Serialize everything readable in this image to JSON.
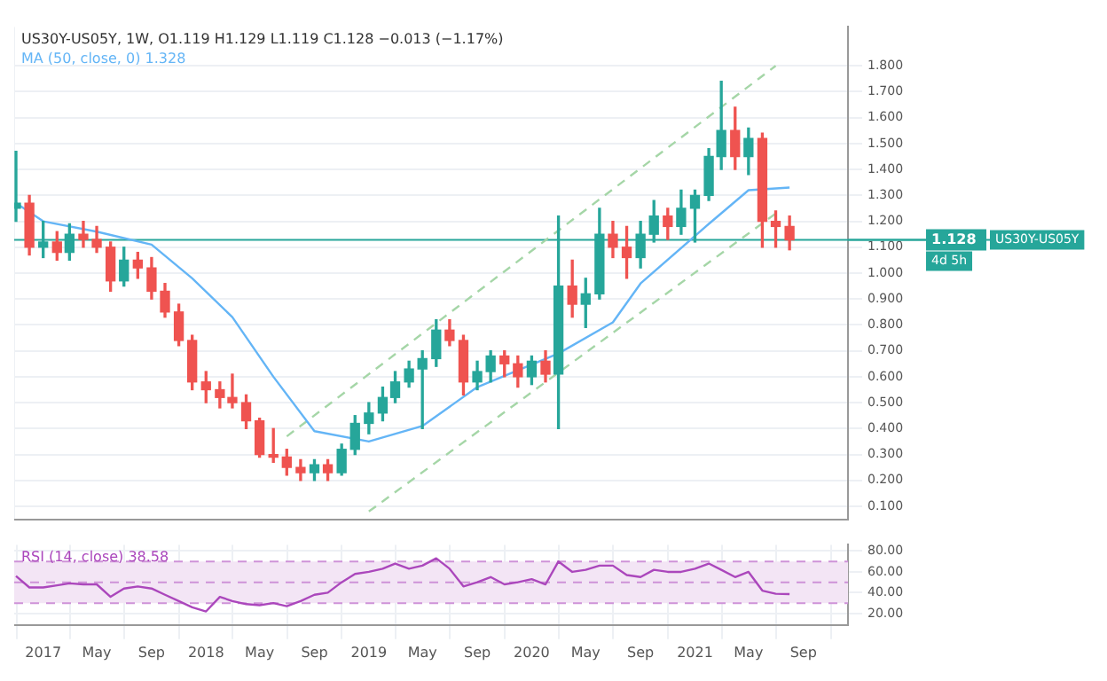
{
  "chart_data": [
    {
      "type": "candlestick",
      "title": "US30Y-US05Y, 1W, O1.119 H1.129 L1.119 C1.128 −0.013 (−1.17%)",
      "x": [
        "2016-11",
        "2016-12",
        "2017-01",
        "2017-02",
        "2017-03",
        "2017-04",
        "2017-05",
        "2017-06",
        "2017-07",
        "2017-08",
        "2017-09",
        "2017-10",
        "2017-11",
        "2017-12",
        "2018-01",
        "2018-02",
        "2018-03",
        "2018-04",
        "2018-05",
        "2018-06",
        "2018-07",
        "2018-08",
        "2018-09",
        "2018-10",
        "2018-11",
        "2018-12",
        "2019-01",
        "2019-02",
        "2019-03",
        "2019-04",
        "2019-05",
        "2019-06",
        "2019-07",
        "2019-08",
        "2019-09",
        "2019-10",
        "2019-11",
        "2019-12",
        "2020-01",
        "2020-02",
        "2020-03",
        "2020-04",
        "2020-05",
        "2020-06",
        "2020-07",
        "2020-08",
        "2020-09",
        "2020-10",
        "2020-11",
        "2020-12",
        "2021-01",
        "2021-02",
        "2021-03",
        "2021-04",
        "2021-05",
        "2021-06",
        "2021-07",
        "2021-08"
      ],
      "ohlc": [
        [
          1.25,
          1.47,
          1.2,
          1.27
        ],
        [
          1.27,
          1.3,
          1.07,
          1.1
        ],
        [
          1.1,
          1.2,
          1.06,
          1.12
        ],
        [
          1.12,
          1.16,
          1.05,
          1.08
        ],
        [
          1.08,
          1.19,
          1.05,
          1.15
        ],
        [
          1.15,
          1.2,
          1.1,
          1.13
        ],
        [
          1.13,
          1.18,
          1.08,
          1.1
        ],
        [
          1.1,
          1.12,
          0.93,
          0.97
        ],
        [
          0.97,
          1.1,
          0.95,
          1.05
        ],
        [
          1.05,
          1.08,
          0.98,
          1.02
        ],
        [
          1.02,
          1.06,
          0.9,
          0.93
        ],
        [
          0.93,
          0.96,
          0.83,
          0.85
        ],
        [
          0.85,
          0.88,
          0.72,
          0.74
        ],
        [
          0.74,
          0.76,
          0.55,
          0.58
        ],
        [
          0.58,
          0.62,
          0.5,
          0.55
        ],
        [
          0.55,
          0.58,
          0.48,
          0.52
        ],
        [
          0.52,
          0.61,
          0.48,
          0.5
        ],
        [
          0.5,
          0.53,
          0.4,
          0.43
        ],
        [
          0.43,
          0.44,
          0.29,
          0.3
        ],
        [
          0.3,
          0.4,
          0.27,
          0.29
        ],
        [
          0.29,
          0.32,
          0.22,
          0.25
        ],
        [
          0.25,
          0.28,
          0.2,
          0.23
        ],
        [
          0.23,
          0.28,
          0.2,
          0.26
        ],
        [
          0.26,
          0.28,
          0.2,
          0.23
        ],
        [
          0.23,
          0.34,
          0.22,
          0.32
        ],
        [
          0.32,
          0.45,
          0.3,
          0.42
        ],
        [
          0.42,
          0.5,
          0.38,
          0.46
        ],
        [
          0.46,
          0.56,
          0.43,
          0.52
        ],
        [
          0.52,
          0.62,
          0.5,
          0.58
        ],
        [
          0.58,
          0.66,
          0.56,
          0.63
        ],
        [
          0.63,
          0.7,
          0.4,
          0.67
        ],
        [
          0.67,
          0.82,
          0.64,
          0.78
        ],
        [
          0.78,
          0.82,
          0.72,
          0.74
        ],
        [
          0.74,
          0.76,
          0.53,
          0.58
        ],
        [
          0.58,
          0.66,
          0.55,
          0.62
        ],
        [
          0.62,
          0.7,
          0.58,
          0.68
        ],
        [
          0.68,
          0.7,
          0.6,
          0.65
        ],
        [
          0.65,
          0.68,
          0.56,
          0.6
        ],
        [
          0.6,
          0.68,
          0.57,
          0.66
        ],
        [
          0.66,
          0.7,
          0.58,
          0.61
        ],
        [
          0.61,
          1.22,
          0.4,
          0.95
        ],
        [
          0.95,
          1.05,
          0.83,
          0.88
        ],
        [
          0.88,
          0.98,
          0.79,
          0.92
        ],
        [
          0.92,
          1.25,
          0.9,
          1.15
        ],
        [
          1.15,
          1.2,
          1.06,
          1.1
        ],
        [
          1.1,
          1.18,
          0.98,
          1.06
        ],
        [
          1.06,
          1.2,
          1.02,
          1.15
        ],
        [
          1.15,
          1.28,
          1.12,
          1.22
        ],
        [
          1.22,
          1.25,
          1.13,
          1.18
        ],
        [
          1.18,
          1.32,
          1.15,
          1.25
        ],
        [
          1.25,
          1.32,
          1.12,
          1.3
        ],
        [
          1.3,
          1.48,
          1.28,
          1.45
        ],
        [
          1.45,
          1.74,
          1.4,
          1.55
        ],
        [
          1.55,
          1.64,
          1.4,
          1.45
        ],
        [
          1.45,
          1.56,
          1.38,
          1.52
        ],
        [
          1.52,
          1.54,
          1.1,
          1.2
        ],
        [
          1.2,
          1.24,
          1.1,
          1.18
        ],
        [
          1.18,
          1.22,
          1.09,
          1.128
        ]
      ],
      "colors": [
        "#26a69a",
        "#ef5350",
        "#26a69a",
        "#ef5350",
        "#26a69a",
        "#ef5350",
        "#ef5350",
        "#ef5350",
        "#26a69a",
        "#ef5350",
        "#ef5350",
        "#ef5350",
        "#ef5350",
        "#ef5350",
        "#ef5350",
        "#ef5350",
        "#ef5350",
        "#ef5350",
        "#ef5350",
        "#ef5350",
        "#ef5350",
        "#ef5350",
        "#26a69a",
        "#ef5350",
        "#26a69a",
        "#26a69a",
        "#26a69a",
        "#26a69a",
        "#26a69a",
        "#26a69a",
        "#26a69a",
        "#26a69a",
        "#ef5350",
        "#ef5350",
        "#26a69a",
        "#26a69a",
        "#ef5350",
        "#ef5350",
        "#26a69a",
        "#ef5350",
        "#26a69a",
        "#ef5350",
        "#26a69a",
        "#26a69a",
        "#ef5350",
        "#ef5350",
        "#26a69a",
        "#26a69a",
        "#ef5350",
        "#26a69a",
        "#26a69a",
        "#26a69a",
        "#26a69a",
        "#ef5350",
        "#26a69a",
        "#ef5350",
        "#ef5350",
        "#ef5350"
      ],
      "series": [
        {
          "type": "line",
          "name": "MA (50, close, 0) 1.328",
          "color": "#64b5f6",
          "x": [
            "2016-11",
            "2017-01",
            "2017-05",
            "2017-09",
            "2017-12",
            "2018-03",
            "2018-06",
            "2018-09",
            "2019-01",
            "2019-05",
            "2019-09",
            "2020-03",
            "2020-07",
            "2020-09",
            "2021-02",
            "2021-05",
            "2021-08"
          ],
          "values": [
            1.27,
            1.2,
            1.16,
            1.11,
            0.98,
            0.83,
            0.6,
            0.39,
            0.35,
            0.41,
            0.56,
            0.69,
            0.81,
            0.96,
            1.19,
            1.32,
            1.33
          ]
        },
        {
          "type": "line",
          "color": "#a5d6a7",
          "line_style": "dashed",
          "x": [
            "2018-07",
            "2021-07"
          ],
          "values": [
            0.37,
            1.8
          ]
        },
        {
          "type": "line",
          "color": "#a5d6a7",
          "line_style": "dashed",
          "x": [
            "2019-01",
            "2021-07"
          ],
          "values": [
            0.08,
            1.23
          ]
        }
      ],
      "xlim": [
        "2016-10-28",
        "2021-12-10"
      ],
      "xticks": [
        {
          "value": "2017-01-01",
          "label": null
        },
        {
          "value": "2017-05-01",
          "label": null
        },
        {
          "value": "2017-09-01",
          "label": null
        },
        {
          "value": "2018-01-01",
          "label": null
        },
        {
          "value": "2018-05-01",
          "label": null
        },
        {
          "value": "2018-09-01",
          "label": null
        },
        {
          "value": "2019-01-01",
          "label": null
        },
        {
          "value": "2019-05-01",
          "label": null
        },
        {
          "value": "2019-09-01",
          "label": null
        },
        {
          "value": "2020-01-01",
          "label": null
        },
        {
          "value": "2020-05-01",
          "label": null
        },
        {
          "value": "2020-09-01",
          "label": null
        },
        {
          "value": "2021-01-01",
          "label": null
        },
        {
          "value": "2021-05-01",
          "label": null
        },
        {
          "value": "2021-09-01",
          "label": null
        }
      ],
      "ylim": [
        0.05,
        1.95
      ],
      "yticks": [
        {
          "value": 0.1,
          "label": "0.100"
        },
        {
          "value": 0.2,
          "label": "0.200"
        },
        {
          "value": 0.3,
          "label": "0.300"
        },
        {
          "value": 0.4,
          "label": "0.400"
        },
        {
          "value": 0.5,
          "label": "0.500"
        },
        {
          "value": 0.6,
          "label": "0.600"
        },
        {
          "value": 0.7,
          "label": "0.700"
        },
        {
          "value": 0.8,
          "label": "0.800"
        },
        {
          "value": 0.9,
          "label": "0.900"
        },
        {
          "value": 1.0,
          "label": "1.000"
        },
        {
          "value": 1.1,
          "label": "1.100"
        },
        {
          "value": 1.2,
          "label": "1.200"
        },
        {
          "value": 1.3,
          "label": "1.300"
        },
        {
          "value": 1.4,
          "label": "1.400"
        },
        {
          "value": 1.5,
          "label": "1.500"
        },
        {
          "value": 1.6,
          "label": "1.600"
        },
        {
          "value": 1.7,
          "label": "1.700"
        },
        {
          "value": 1.8,
          "label": "1.800"
        }
      ],
      "ref_lines": [
        {
          "axis": "y",
          "value": 1.128,
          "label": "1.128",
          "color": "#26a69a"
        }
      ],
      "annotations": [
        {
          "text": "US30Y-US05Y",
          "x": "2021-12-10",
          "y": 1.128
        },
        "4d 5h"
      ],
      "grid": true,
      "tick_labels": "y"
    },
    {
      "type": "line",
      "x": [
        "2016-11",
        "2016-12",
        "2017-01",
        "2017-02",
        "2017-03",
        "2017-04",
        "2017-05",
        "2017-06",
        "2017-07",
        "2017-08",
        "2017-09",
        "2017-10",
        "2017-11",
        "2017-12",
        "2018-01",
        "2018-02",
        "2018-03",
        "2018-04",
        "2018-05",
        "2018-06",
        "2018-07",
        "2018-08",
        "2018-09",
        "2018-10",
        "2018-11",
        "2018-12",
        "2019-01",
        "2019-02",
        "2019-03",
        "2019-04",
        "2019-05",
        "2019-06",
        "2019-07",
        "2019-08",
        "2019-09",
        "2019-10",
        "2019-11",
        "2019-12",
        "2020-01",
        "2020-02",
        "2020-03",
        "2020-04",
        "2020-05",
        "2020-06",
        "2020-07",
        "2020-08",
        "2020-09",
        "2020-10",
        "2020-11",
        "2020-12",
        "2021-01",
        "2021-02",
        "2021-03",
        "2021-04",
        "2021-05",
        "2021-06",
        "2021-07",
        "2021-08"
      ],
      "series": [
        {
          "name": "RSI (14, close) 38.58",
          "color": "#ab47bc",
          "values": [
            56,
            45,
            45,
            47,
            49,
            48,
            48,
            36,
            44,
            46,
            44,
            38,
            32,
            26,
            22,
            36,
            32,
            29,
            28,
            30,
            27,
            32,
            38,
            40,
            50,
            58,
            60,
            63,
            68,
            63,
            66,
            73,
            63,
            46,
            50,
            55,
            48,
            50,
            53,
            48,
            70,
            60,
            62,
            66,
            66,
            57,
            55,
            62,
            60,
            60,
            63,
            68,
            62,
            55,
            60,
            42,
            39,
            38.58
          ]
        }
      ],
      "xlim": [
        "2016-10-28",
        "2021-12-10"
      ],
      "xticks": [
        {
          "value": "2017-01-01",
          "label": "2017"
        },
        {
          "value": "2017-05-01",
          "label": "May"
        },
        {
          "value": "2017-09-01",
          "label": "Sep"
        },
        {
          "value": "2018-01-01",
          "label": "2018"
        },
        {
          "value": "2018-05-01",
          "label": "May"
        },
        {
          "value": "2018-09-01",
          "label": "Sep"
        },
        {
          "value": "2019-01-01",
          "label": "2019"
        },
        {
          "value": "2019-05-01",
          "label": "May"
        },
        {
          "value": "2019-09-01",
          "label": "Sep"
        },
        {
          "value": "2020-01-01",
          "label": "2020"
        },
        {
          "value": "2020-05-01",
          "label": "May"
        },
        {
          "value": "2020-09-01",
          "label": "Sep"
        },
        {
          "value": "2021-01-01",
          "label": "2021"
        },
        {
          "value": "2021-05-01",
          "label": "May"
        },
        {
          "value": "2021-09-01",
          "label": "Sep"
        }
      ],
      "ylim": [
        9,
        86
      ],
      "yticks": [
        {
          "value": 20,
          "label": "20.00"
        },
        {
          "value": 40,
          "label": "40.00"
        },
        {
          "value": 60,
          "label": "60.00"
        },
        {
          "value": 80,
          "label": "80.00"
        }
      ],
      "bands": [
        {
          "axis": "y",
          "from": 30,
          "to": 70,
          "color": "#f3e5f5"
        }
      ],
      "ref_lines": [
        {
          "axis": "y",
          "value": 30,
          "color": "#ce93d8",
          "line_style": "dashed"
        },
        {
          "axis": "y",
          "value": 50,
          "color": "#ce93d8",
          "line_style": "dashed"
        },
        {
          "axis": "y",
          "value": 70,
          "color": "#ce93d8",
          "line_style": "dashed"
        }
      ],
      "grid": true
    }
  ]
}
